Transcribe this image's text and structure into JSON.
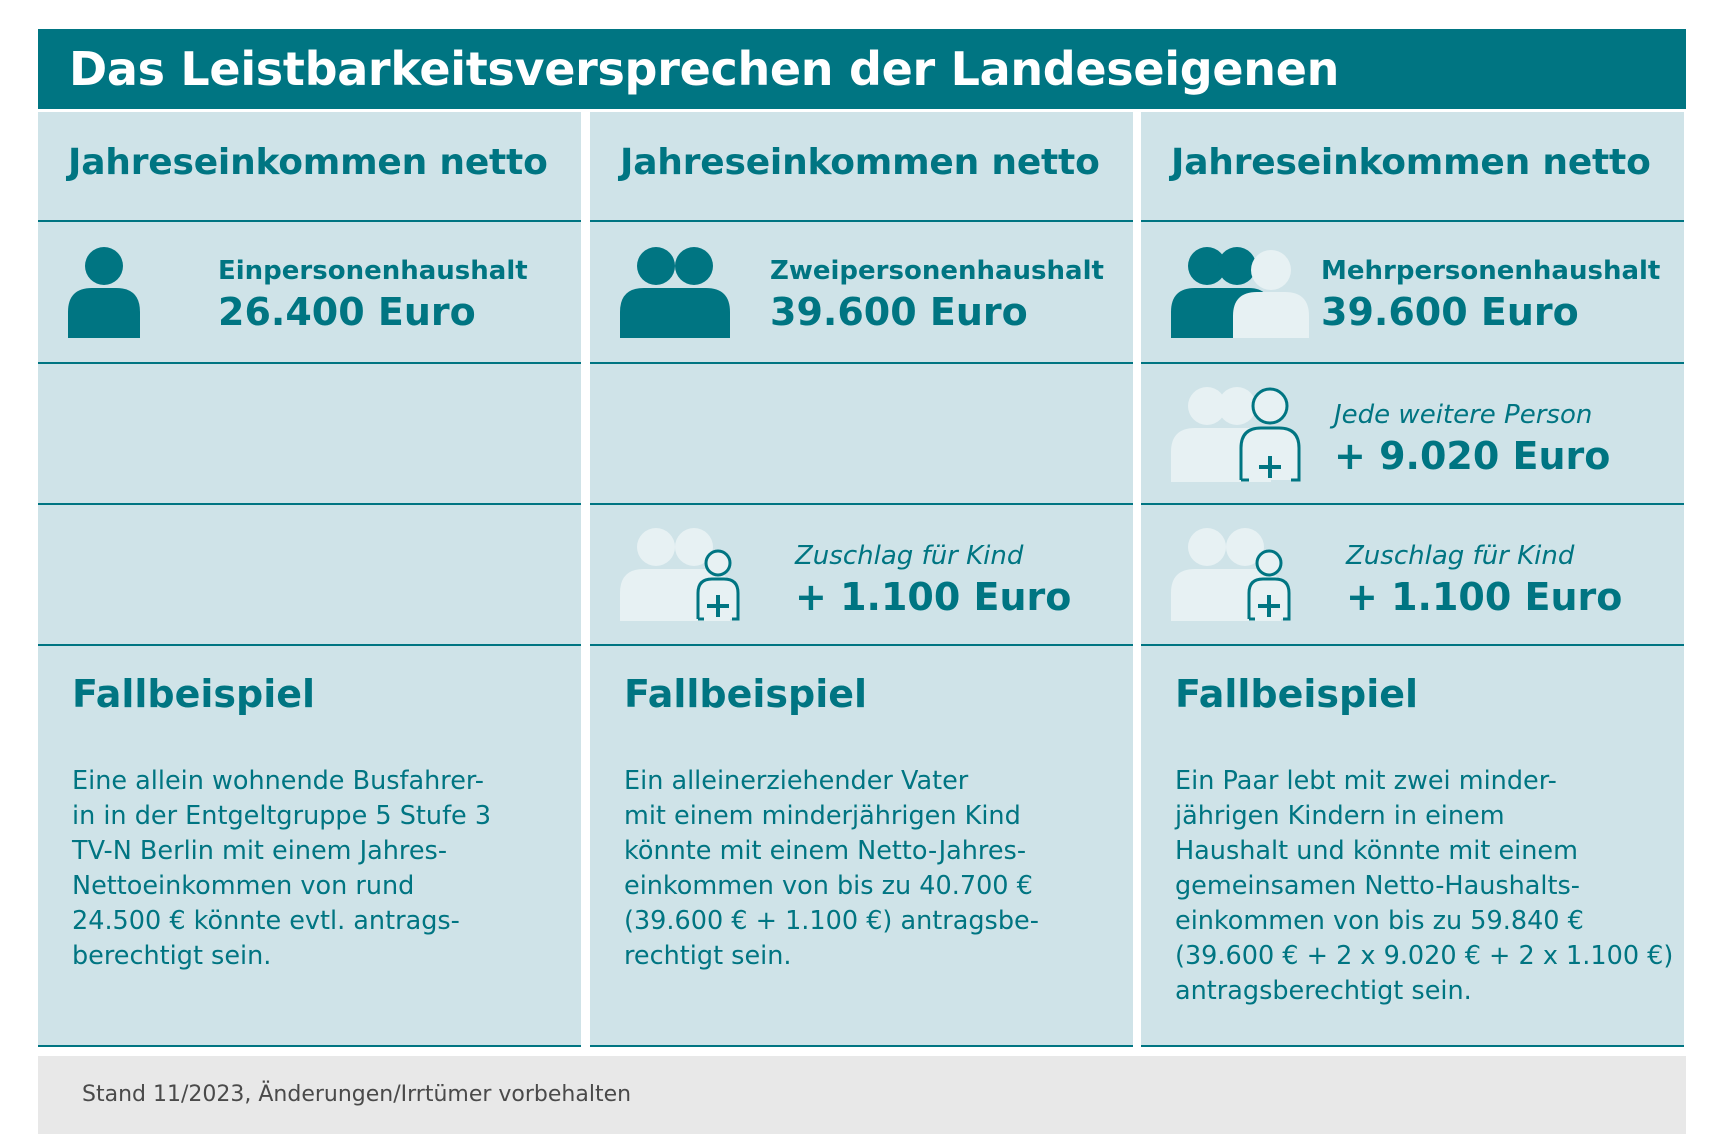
{
  "title": "Das Leistbarkeitsversprechen der Landeseigenen",
  "colors": {
    "teal": "#007582",
    "cell_bg": "#cfe3e8",
    "icon_light": "#e7f1f3",
    "footer_bg": "#e8e8e8"
  },
  "columns": [
    {
      "header": "Jahreseinkommen netto",
      "household": {
        "icon": "single-person-icon",
        "label": "Einpersonenhaushalt",
        "value": "26.400 Euro"
      },
      "case": {
        "title": "Fallbeispiel",
        "lines": [
          "Eine allein wohnende Busfahrer-",
          "in in der Entgeltgruppe 5 Stufe 3",
          "TV-N Berlin mit einem Jahres-",
          "Nettoeinkommen von rund",
          "24.500 € könnte evtl. antrags-",
          "berechtigt sein."
        ]
      }
    },
    {
      "header": "Jahreseinkommen netto",
      "household": {
        "icon": "two-persons-icon",
        "label": "Zweipersonenhaushalt",
        "value": "39.600 Euro"
      },
      "child": {
        "icon": "child-supplement-icon",
        "label": "Zuschlag für Kind",
        "value": "+ 1.100 Euro"
      },
      "case": {
        "title": "Fallbeispiel",
        "lines": [
          "Ein alleinerziehender Vater",
          "mit einem minderjährigen Kind",
          "könnte mit einem Netto-Jahres-",
          "einkommen von bis zu 40.700 €",
          "(39.600 € + 1.100 €) antragsbe-",
          "rechtigt sein."
        ]
      }
    },
    {
      "header": "Jahreseinkommen netto",
      "household": {
        "icon": "multi-person-icon",
        "label": "Mehrpersonenhaushalt",
        "value": "39.600 Euro"
      },
      "extra": {
        "icon": "additional-person-icon",
        "label": "Jede weitere Person",
        "value": "+ 9.020 Euro"
      },
      "child": {
        "icon": "child-supplement-icon",
        "label": "Zuschlag für Kind",
        "value": "+ 1.100 Euro"
      },
      "case": {
        "title": "Fallbeispiel",
        "lines": [
          "Ein Paar lebt mit zwei minder-",
          "jährigen Kindern in einem",
          "Haushalt und könnte mit einem",
          "gemeinsamen Netto-Haushalts-",
          "einkommen von bis zu 59.840 €",
          "(39.600 € + 2 x 9.020 € + 2 x 1.100 €)",
          "antragsberechtigt sein."
        ]
      }
    }
  ],
  "footer": "Stand 11/2023, Änderungen/Irrtümer vorbehalten"
}
